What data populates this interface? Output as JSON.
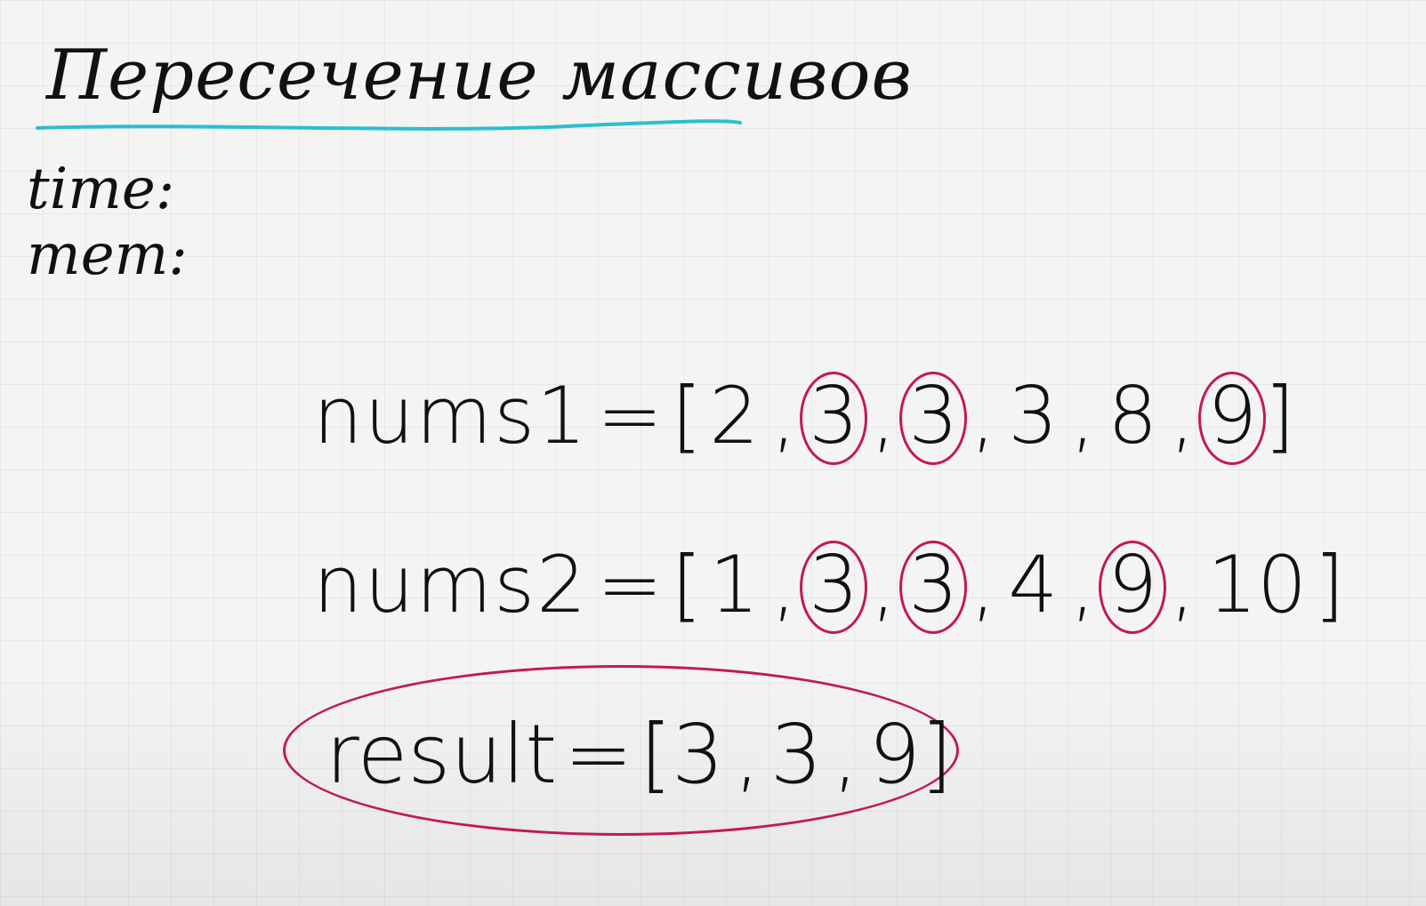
{
  "title": "Пересечение массивов",
  "labels": {
    "time": "time:",
    "mem": "mem:"
  },
  "colors": {
    "underline": "#2bbfd0",
    "highlight": "#c2185b",
    "ink": "#111111"
  },
  "nums1": {
    "name": "nums1",
    "equals": "=",
    "open": "[",
    "close": "]",
    "items": [
      {
        "value": "2",
        "circled": false
      },
      {
        "value": "3",
        "circled": true
      },
      {
        "value": "3",
        "circled": true
      },
      {
        "value": "3",
        "circled": false
      },
      {
        "value": "8",
        "circled": false
      },
      {
        "value": "9",
        "circled": true
      }
    ]
  },
  "nums2": {
    "name": "nums2",
    "equals": "=",
    "open": "[",
    "close": "]",
    "items": [
      {
        "value": "1",
        "circled": false
      },
      {
        "value": "3",
        "circled": true
      },
      {
        "value": "3",
        "circled": true
      },
      {
        "value": "4",
        "circled": false
      },
      {
        "value": "9",
        "circled": true
      },
      {
        "value": "10",
        "circled": false
      }
    ]
  },
  "result": {
    "name": "result",
    "equals": "=",
    "open": "[",
    "close": "]",
    "items": [
      "3",
      "3",
      "9"
    ]
  }
}
